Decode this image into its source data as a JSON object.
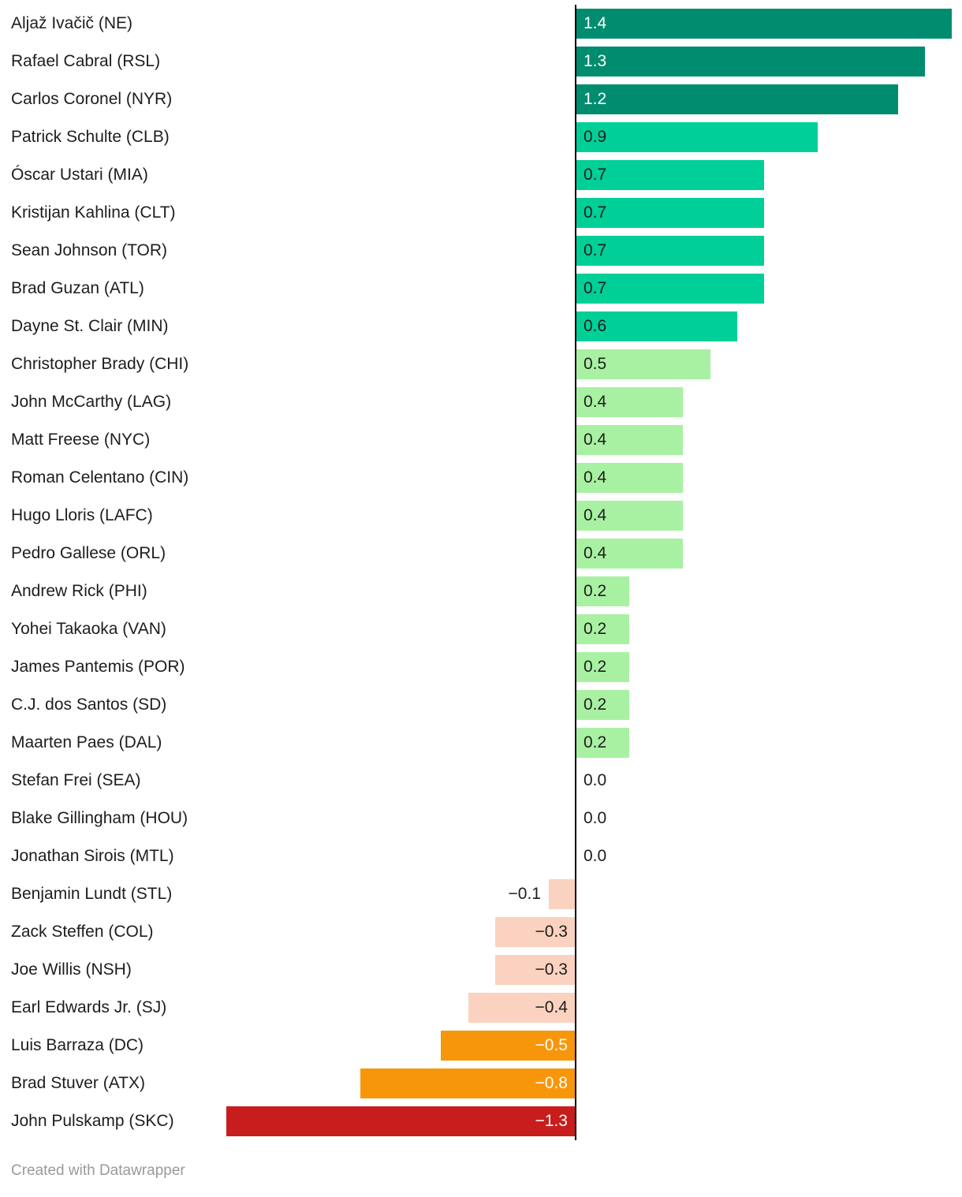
{
  "chart_data": {
    "type": "bar",
    "orientation": "horizontal",
    "xlim": [
      -1.3,
      1.4
    ],
    "grid": false,
    "legend": false,
    "palette": {
      "dark_green": "#008c6f",
      "medium_green": "#00cf97",
      "light_green": "#a9f1a2",
      "light_salmon": "#fbd2bf",
      "orange": "#f8960b",
      "red": "#c71e1d",
      "text_dark": "#1d1d1d",
      "text_light": "#ffffff",
      "axis": "#000000"
    },
    "bars": [
      {
        "name": "Aljaž Ivačič (NE)",
        "value": 1.4,
        "display": "1.4",
        "color": "#008c6f",
        "text_color": "#ffffff",
        "label_inside": true
      },
      {
        "name": "Rafael Cabral (RSL)",
        "value": 1.3,
        "display": "1.3",
        "color": "#008c6f",
        "text_color": "#ffffff",
        "label_inside": true
      },
      {
        "name": "Carlos Coronel (NYR)",
        "value": 1.2,
        "display": "1.2",
        "color": "#008c6f",
        "text_color": "#ffffff",
        "label_inside": true
      },
      {
        "name": "Patrick Schulte (CLB)",
        "value": 0.9,
        "display": "0.9",
        "color": "#00cf97",
        "text_color": "#1d1d1d",
        "label_inside": true
      },
      {
        "name": "Óscar Ustari (MIA)",
        "value": 0.7,
        "display": "0.7",
        "color": "#00cf97",
        "text_color": "#1d1d1d",
        "label_inside": true
      },
      {
        "name": "Kristijan Kahlina (CLT)",
        "value": 0.7,
        "display": "0.7",
        "color": "#00cf97",
        "text_color": "#1d1d1d",
        "label_inside": true
      },
      {
        "name": "Sean Johnson (TOR)",
        "value": 0.7,
        "display": "0.7",
        "color": "#00cf97",
        "text_color": "#1d1d1d",
        "label_inside": true
      },
      {
        "name": "Brad Guzan (ATL)",
        "value": 0.7,
        "display": "0.7",
        "color": "#00cf97",
        "text_color": "#1d1d1d",
        "label_inside": true
      },
      {
        "name": "Dayne St. Clair (MIN)",
        "value": 0.6,
        "display": "0.6",
        "color": "#00cf97",
        "text_color": "#1d1d1d",
        "label_inside": true
      },
      {
        "name": "Christopher Brady (CHI)",
        "value": 0.5,
        "display": "0.5",
        "color": "#a9f1a2",
        "text_color": "#1d1d1d",
        "label_inside": true
      },
      {
        "name": "John McCarthy (LAG)",
        "value": 0.4,
        "display": "0.4",
        "color": "#a9f1a2",
        "text_color": "#1d1d1d",
        "label_inside": true
      },
      {
        "name": "Matt Freese (NYC)",
        "value": 0.4,
        "display": "0.4",
        "color": "#a9f1a2",
        "text_color": "#1d1d1d",
        "label_inside": true
      },
      {
        "name": "Roman Celentano (CIN)",
        "value": 0.4,
        "display": "0.4",
        "color": "#a9f1a2",
        "text_color": "#1d1d1d",
        "label_inside": true
      },
      {
        "name": "Hugo Lloris (LAFC)",
        "value": 0.4,
        "display": "0.4",
        "color": "#a9f1a2",
        "text_color": "#1d1d1d",
        "label_inside": true
      },
      {
        "name": "Pedro Gallese (ORL)",
        "value": 0.4,
        "display": "0.4",
        "color": "#a9f1a2",
        "text_color": "#1d1d1d",
        "label_inside": true
      },
      {
        "name": "Andrew Rick (PHI)",
        "value": 0.2,
        "display": "0.2",
        "color": "#a9f1a2",
        "text_color": "#1d1d1d",
        "label_inside": true
      },
      {
        "name": "Yohei Takaoka (VAN)",
        "value": 0.2,
        "display": "0.2",
        "color": "#a9f1a2",
        "text_color": "#1d1d1d",
        "label_inside": true
      },
      {
        "name": "James Pantemis (POR)",
        "value": 0.2,
        "display": "0.2",
        "color": "#a9f1a2",
        "text_color": "#1d1d1d",
        "label_inside": true
      },
      {
        "name": "C.J. dos Santos (SD)",
        "value": 0.2,
        "display": "0.2",
        "color": "#a9f1a2",
        "text_color": "#1d1d1d",
        "label_inside": true
      },
      {
        "name": "Maarten Paes (DAL)",
        "value": 0.2,
        "display": "0.2",
        "color": "#a9f1a2",
        "text_color": "#1d1d1d",
        "label_inside": true
      },
      {
        "name": "Stefan Frei (SEA)",
        "value": 0.0,
        "display": "0.0",
        "color": "",
        "text_color": "#1d1d1d",
        "label_inside": false
      },
      {
        "name": "Blake Gillingham (HOU)",
        "value": 0.0,
        "display": "0.0",
        "color": "",
        "text_color": "#1d1d1d",
        "label_inside": false
      },
      {
        "name": "Jonathan Sirois (MTL)",
        "value": 0.0,
        "display": "0.0",
        "color": "",
        "text_color": "#1d1d1d",
        "label_inside": false
      },
      {
        "name": "Benjamin Lundt (STL)",
        "value": -0.1,
        "display": "−0.1",
        "color": "#fbd2bf",
        "text_color": "#1d1d1d",
        "label_inside": false
      },
      {
        "name": "Zack Steffen (COL)",
        "value": -0.3,
        "display": "−0.3",
        "color": "#fbd2bf",
        "text_color": "#1d1d1d",
        "label_inside": true
      },
      {
        "name": "Joe Willis (NSH)",
        "value": -0.3,
        "display": "−0.3",
        "color": "#fbd2bf",
        "text_color": "#1d1d1d",
        "label_inside": true
      },
      {
        "name": "Earl Edwards Jr. (SJ)",
        "value": -0.4,
        "display": "−0.4",
        "color": "#fbd2bf",
        "text_color": "#1d1d1d",
        "label_inside": true
      },
      {
        "name": "Luis Barraza (DC)",
        "value": -0.5,
        "display": "−0.5",
        "color": "#f8960b",
        "text_color": "#ffffff",
        "label_inside": true
      },
      {
        "name": "Brad Stuver (ATX)",
        "value": -0.8,
        "display": "−0.8",
        "color": "#f8960b",
        "text_color": "#ffffff",
        "label_inside": true
      },
      {
        "name": "John Pulskamp (SKC)",
        "value": -1.3,
        "display": "−1.3",
        "color": "#c71e1d",
        "text_color": "#ffffff",
        "label_inside": true
      }
    ]
  },
  "footer": {
    "credit": "Created with Datawrapper"
  }
}
